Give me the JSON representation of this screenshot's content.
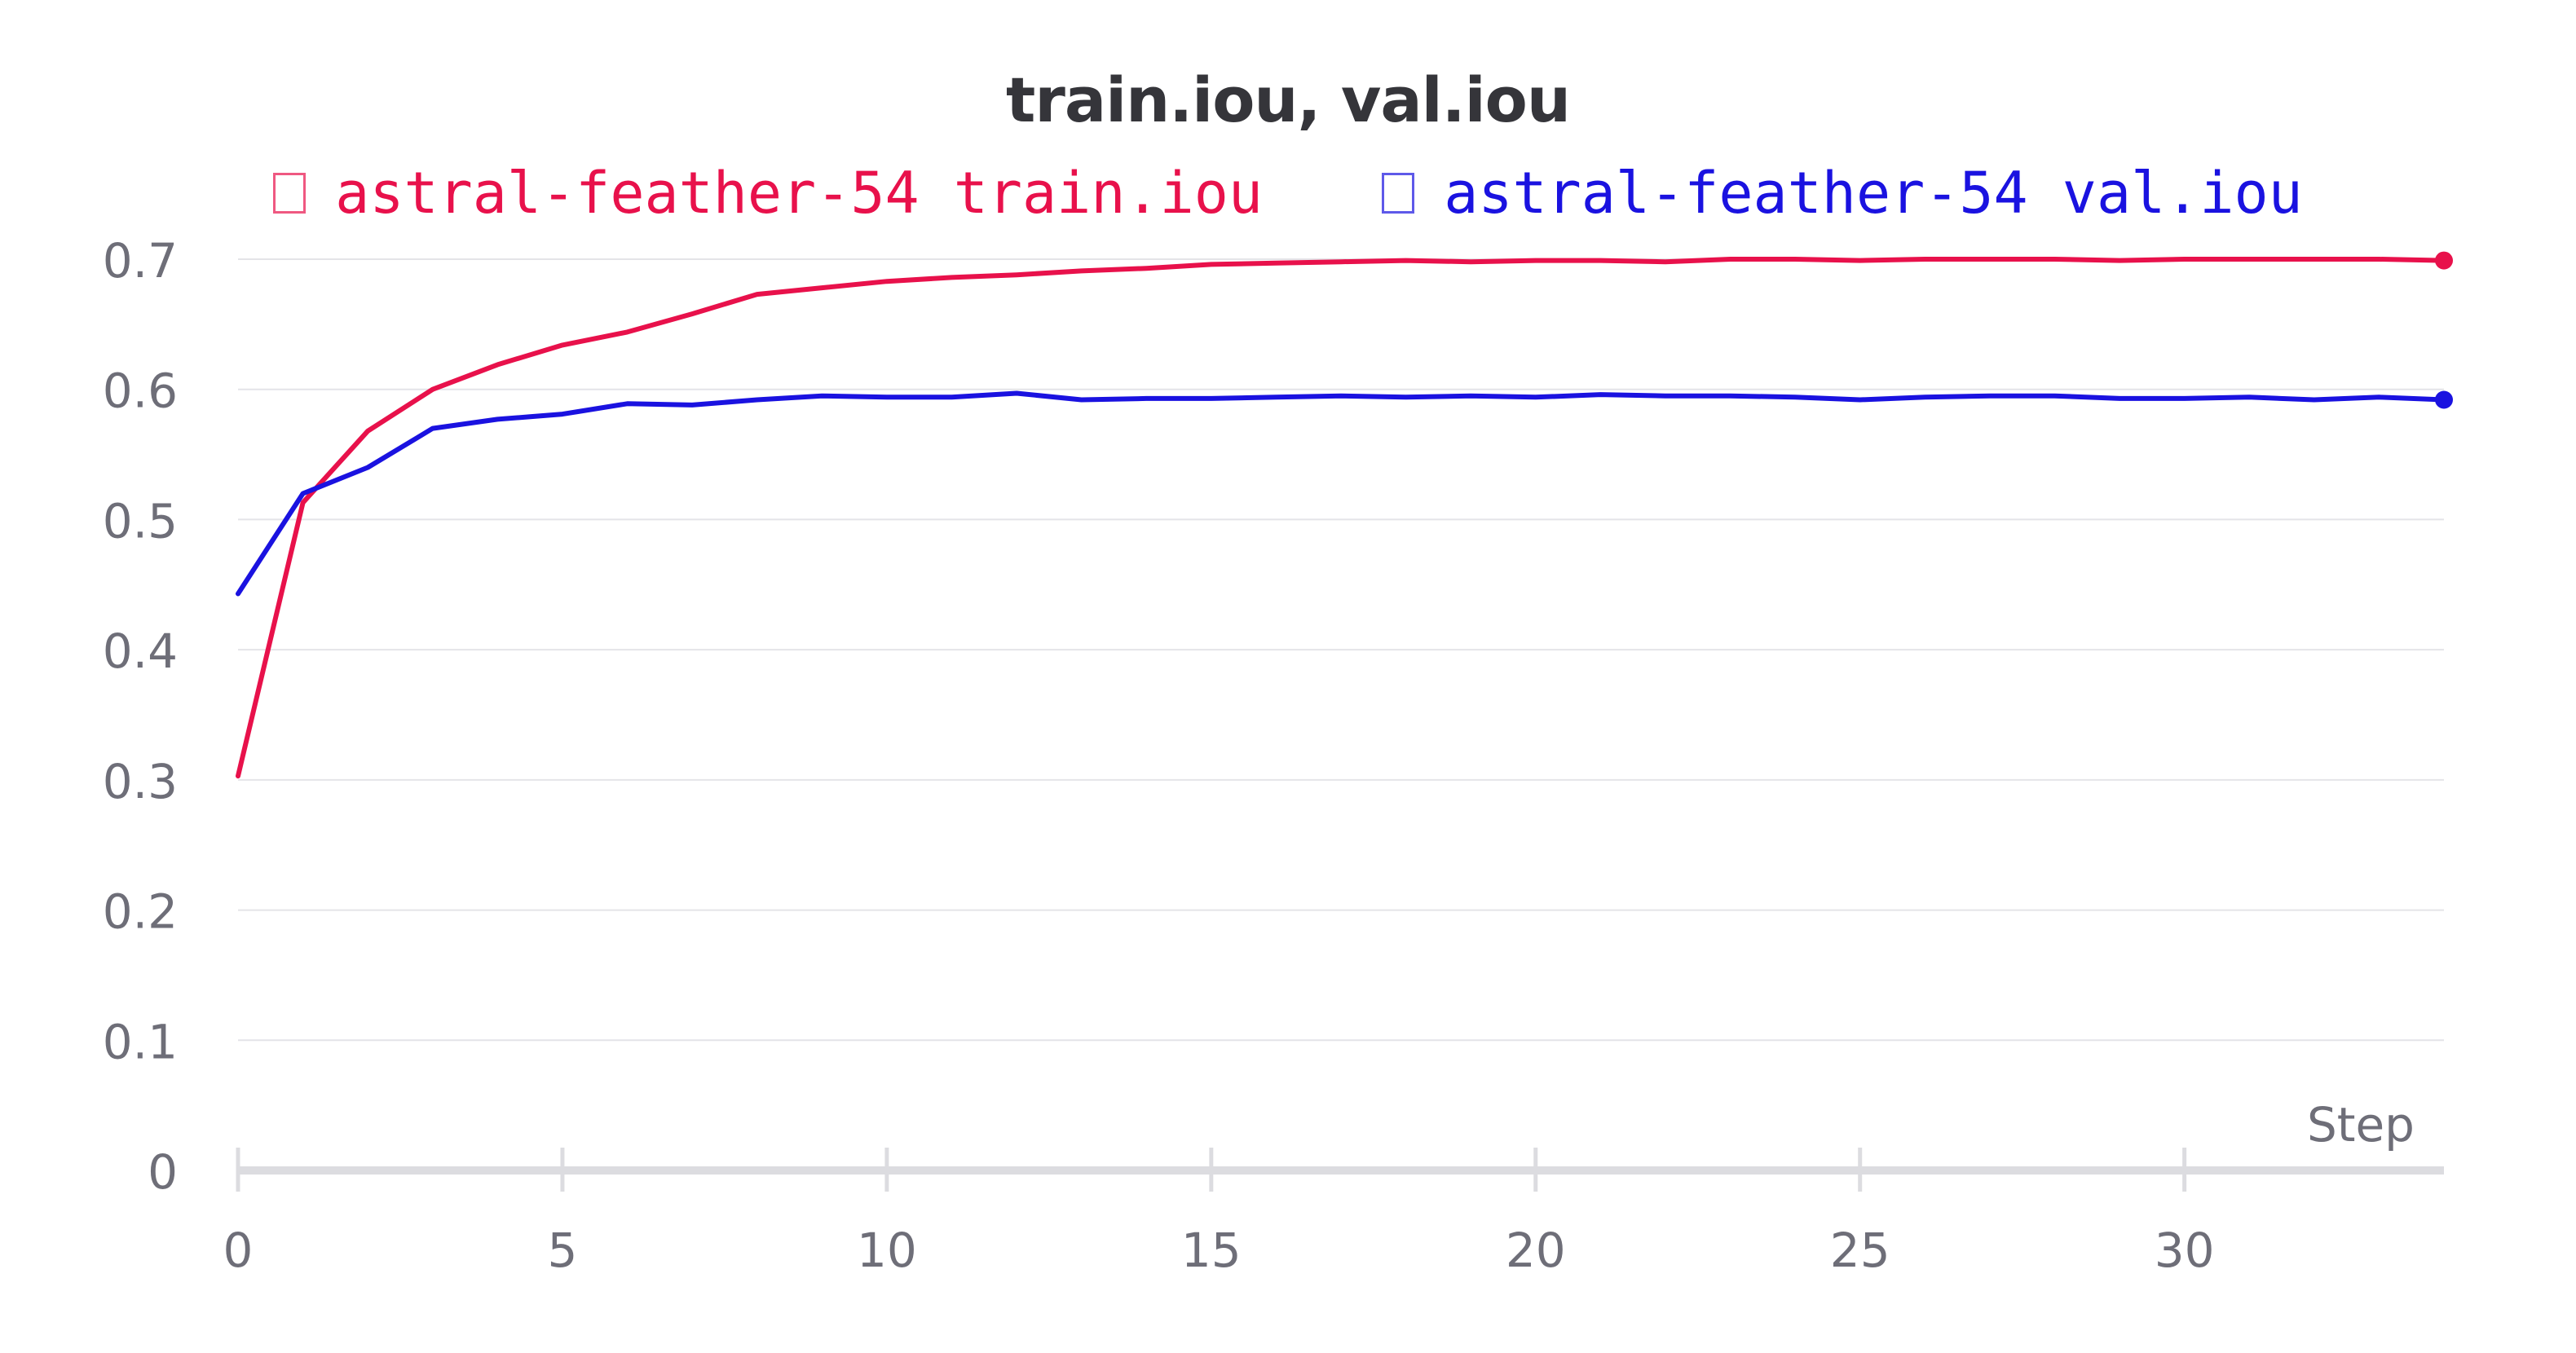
{
  "chart_data": {
    "type": "line",
    "title": "train.iou, val.iou",
    "xlabel": "Step",
    "ylabel": "",
    "xlim": [
      0,
      34
    ],
    "ylim": [
      0,
      0.7
    ],
    "x_ticks": [
      "0",
      "5",
      "10",
      "15",
      "20",
      "25",
      "30"
    ],
    "y_ticks": [
      "0",
      "0.1",
      "0.2",
      "0.3",
      "0.4",
      "0.5",
      "0.6",
      "0.7"
    ],
    "grid": true,
    "legend_position": "top",
    "x": [
      0,
      1,
      2,
      3,
      4,
      5,
      6,
      7,
      8,
      9,
      10,
      11,
      12,
      13,
      14,
      15,
      16,
      17,
      18,
      19,
      20,
      21,
      22,
      23,
      24,
      25,
      26,
      27,
      28,
      29,
      30,
      31,
      32,
      33,
      34
    ],
    "series": [
      {
        "name": "astral-feather-54 train.iou",
        "color": "#e8114b",
        "values": [
          0.303,
          0.513,
          0.568,
          0.6,
          0.619,
          0.634,
          0.644,
          0.658,
          0.673,
          0.678,
          0.683,
          0.686,
          0.688,
          0.691,
          0.693,
          0.696,
          0.697,
          0.698,
          0.699,
          0.698,
          0.699,
          0.699,
          0.698,
          0.7,
          0.7,
          0.699,
          0.7,
          0.7,
          0.7,
          0.699,
          0.7,
          0.7,
          0.7,
          0.7,
          0.699
        ]
      },
      {
        "name": "astral-feather-54 val.iou",
        "color": "#1a12e0",
        "values": [
          0.443,
          0.52,
          0.54,
          0.57,
          0.577,
          0.581,
          0.589,
          0.588,
          0.592,
          0.595,
          0.594,
          0.594,
          0.597,
          0.592,
          0.593,
          0.593,
          0.594,
          0.595,
          0.594,
          0.595,
          0.594,
          0.596,
          0.595,
          0.595,
          0.594,
          0.592,
          0.594,
          0.595,
          0.595,
          0.593,
          0.593,
          0.594,
          0.592,
          0.594,
          0.592
        ]
      }
    ]
  }
}
